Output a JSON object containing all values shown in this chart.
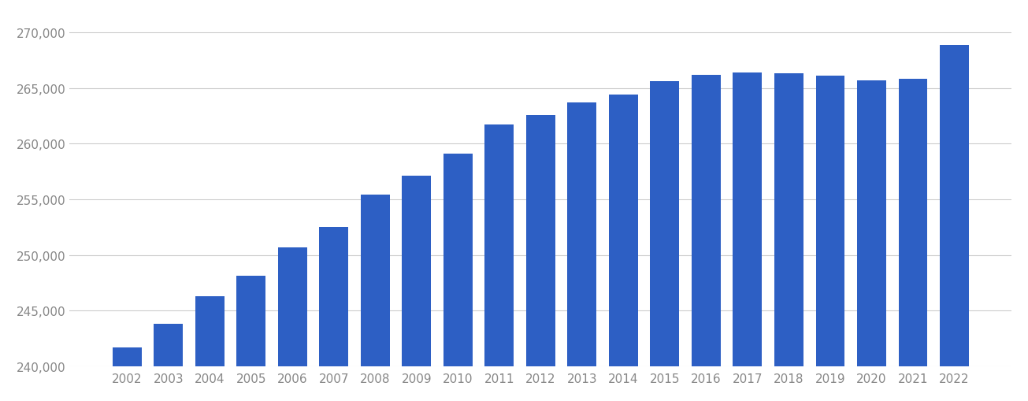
{
  "years": [
    2002,
    2003,
    2004,
    2005,
    2006,
    2007,
    2008,
    2009,
    2010,
    2011,
    2012,
    2013,
    2014,
    2015,
    2016,
    2017,
    2018,
    2019,
    2020,
    2021,
    2022
  ],
  "values": [
    241700,
    243800,
    246300,
    248100,
    250700,
    252500,
    255400,
    257100,
    259100,
    261700,
    262600,
    263700,
    264400,
    265600,
    266200,
    266400,
    266300,
    266100,
    265700,
    265800,
    268900
  ],
  "bar_color": "#2d5fc4",
  "ylim_min": 240000,
  "ylim_max": 271500,
  "yticks": [
    240000,
    245000,
    250000,
    255000,
    260000,
    265000,
    270000
  ],
  "background_color": "#ffffff",
  "grid_color": "#cccccc",
  "tick_label_color": "#888888",
  "bar_width": 0.7,
  "tick_fontsize": 11
}
